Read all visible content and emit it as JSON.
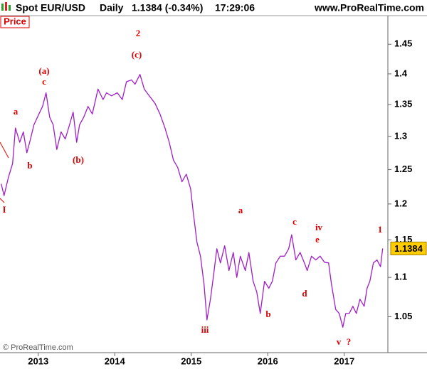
{
  "chart_data": {
    "type": "line",
    "title": "Spot EUR/USD",
    "period": "Daily",
    "quote": "1.1384 (-0.34%)",
    "time": "17:29:06",
    "website": "www.ProRealTime.com",
    "panel_label": "Price",
    "copyright": "© ProRealTime.com",
    "log_scale": true,
    "x": [
      2012.516,
      2012.553,
      2012.609,
      2012.665,
      2012.702,
      2012.758,
      2012.805,
      2012.851,
      2012.888,
      2012.944,
      2013.009,
      2013.056,
      2013.102,
      2013.149,
      2013.195,
      2013.242,
      2013.298,
      2013.353,
      2013.409,
      2013.456,
      2013.502,
      2013.54,
      2013.595,
      2013.651,
      2013.707,
      2013.781,
      2013.847,
      2013.893,
      2013.958,
      2014.033,
      2014.098,
      2014.153,
      2014.219,
      2014.265,
      2014.33,
      2014.386,
      2014.451,
      2014.526,
      2014.591,
      2014.656,
      2014.712,
      2014.767,
      2014.823,
      2014.879,
      2014.935,
      2014.991,
      2015.028,
      2015.074,
      2015.121,
      2015.167,
      2015.205,
      2015.251,
      2015.288,
      2015.335,
      2015.381,
      2015.437,
      2015.493,
      2015.549,
      2015.595,
      2015.642,
      2015.707,
      2015.753,
      2015.809,
      2015.856,
      2015.902,
      2015.958,
      2016.014,
      2016.06,
      2016.107,
      2016.163,
      2016.219,
      2016.274,
      2016.312,
      2016.367,
      2016.423,
      2016.479,
      2016.516,
      2016.572,
      2016.628,
      2016.684,
      2016.74,
      2016.795,
      2016.833,
      2016.888,
      2016.935,
      2016.981,
      2017.019,
      2017.065,
      2017.112,
      2017.158,
      2017.205,
      2017.26,
      2017.298,
      2017.335,
      2017.381,
      2017.428,
      2017.474,
      2017.502
    ],
    "series": [
      {
        "name": "EUR/USD",
        "color": "#a01ec8",
        "values": [
          1.229,
          1.212,
          1.238,
          1.259,
          1.313,
          1.291,
          1.307,
          1.275,
          1.291,
          1.318,
          1.335,
          1.347,
          1.369,
          1.33,
          1.318,
          1.28,
          1.307,
          1.296,
          1.318,
          1.338,
          1.291,
          1.318,
          1.33,
          1.347,
          1.335,
          1.375,
          1.358,
          1.369,
          1.364,
          1.369,
          1.358,
          1.387,
          1.39,
          1.383,
          1.399,
          1.375,
          1.364,
          1.352,
          1.335,
          1.313,
          1.291,
          1.264,
          1.253,
          1.232,
          1.243,
          1.222,
          1.187,
          1.147,
          1.128,
          1.091,
          1.046,
          1.072,
          1.1,
          1.138,
          1.119,
          1.142,
          1.109,
          1.133,
          1.1,
          1.128,
          1.109,
          1.133,
          1.095,
          1.081,
          1.054,
          1.095,
          1.086,
          1.095,
          1.119,
          1.128,
          1.128,
          1.138,
          1.157,
          1.123,
          1.133,
          1.119,
          1.109,
          1.128,
          1.123,
          1.128,
          1.12,
          1.119,
          1.091,
          1.059,
          1.054,
          1.037,
          1.054,
          1.054,
          1.063,
          1.054,
          1.072,
          1.063,
          1.086,
          1.095,
          1.119,
          1.123,
          1.114,
          1.1384
        ]
      }
    ],
    "xlim": [
      2012.5,
      2017.57
    ],
    "xticks": [
      2013,
      2014,
      2015,
      2016,
      2017
    ],
    "ylim": [
      1.007,
      1.5
    ],
    "yticks": [
      1.05,
      1.1,
      1.15,
      1.2,
      1.25,
      1.3,
      1.35,
      1.4,
      1.45
    ],
    "annotations": [
      "2",
      "(c)",
      "(a)",
      "c",
      "a",
      "b",
      "(b)",
      "I",
      "a",
      "iii",
      "b",
      "c",
      "iv",
      "e",
      "d",
      "v",
      "?",
      "1"
    ]
  }
}
